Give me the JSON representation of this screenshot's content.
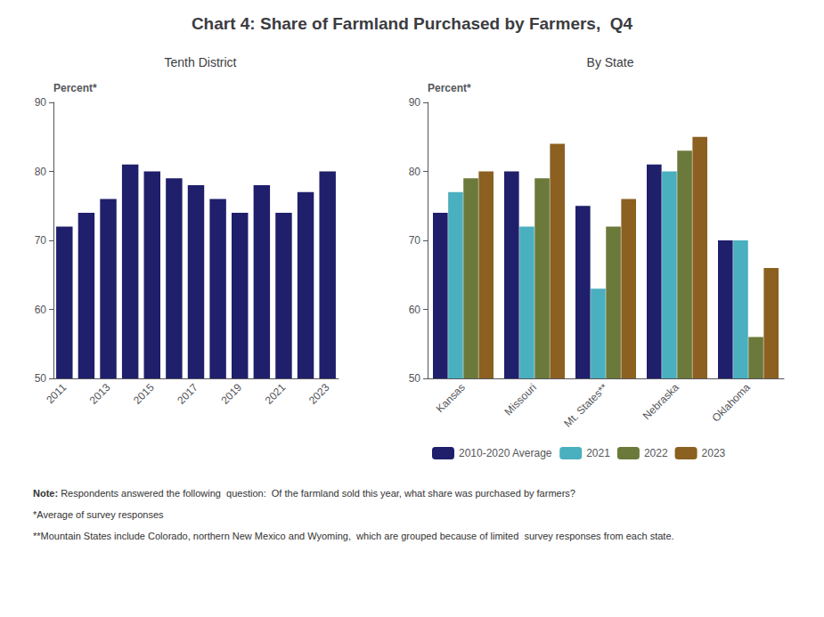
{
  "title": "Chart 4: Share of Farmland Purchased by Farmers,  Q4",
  "annotations": [
    "Note:",
    " Respondents answered the following  question:  Of the farmland sold this year, what share was purchased by farmers?",
    "*Average of survey responses",
    "**Mountain States include Colorado, northern New Mexico and Wyoming,  which are grouped because of limited  survey responses from each state."
  ],
  "chart_data": [
    {
      "type": "bar",
      "title": "Tenth District",
      "ylabel": "Percent*",
      "categories": [
        "2011",
        null,
        "2013",
        null,
        "2015",
        null,
        "2017",
        null,
        "2019",
        null,
        "2021",
        null,
        "2023"
      ],
      "values": [
        72,
        74,
        76,
        81,
        80,
        79,
        78,
        76,
        74,
        78,
        74,
        77,
        80
      ],
      "color": "#1F1F6B",
      "ylim": [
        50,
        90
      ],
      "yticks": [
        50,
        60,
        70,
        80,
        90
      ],
      "grid": false
    },
    {
      "type": "bar",
      "title": "By State",
      "ylabel": "Percent*",
      "categories": [
        "Kansas",
        "Missouri",
        "Mt. States**",
        "Nebraska",
        "Oklahoma"
      ],
      "series": [
        {
          "name": "2010-2020 Average",
          "color": "#1F1F6B",
          "values": [
            74,
            80,
            75,
            81,
            70
          ]
        },
        {
          "name": "2021",
          "color": "#4AAFBE",
          "values": [
            77,
            72,
            63,
            80,
            70
          ]
        },
        {
          "name": "2022",
          "color": "#6B7A3A",
          "values": [
            79,
            79,
            72,
            83,
            56
          ]
        },
        {
          "name": "2023",
          "color": "#8B6020",
          "values": [
            80,
            84,
            76,
            85,
            66
          ]
        }
      ],
      "ylim": [
        50,
        90
      ],
      "yticks": [
        50,
        60,
        70,
        80,
        90
      ],
      "grid": false,
      "legend": "bottom"
    }
  ]
}
